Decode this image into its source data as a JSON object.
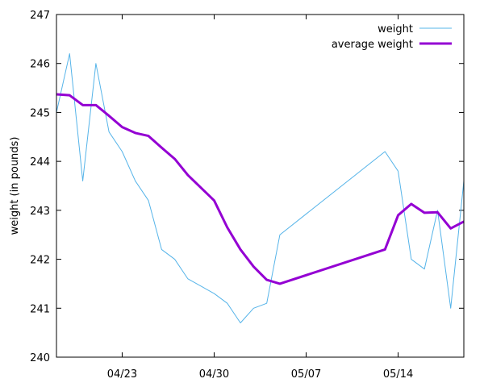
{
  "chart_data": {
    "type": "line",
    "title": "",
    "xlabel": "",
    "ylabel": "weight (in pounds)",
    "xlim": [
      "2023-04-18",
      "2023-05-19"
    ],
    "ylim": [
      240,
      247
    ],
    "x_ticks": [
      "04/23",
      "04/30",
      "05/07",
      "05/14"
    ],
    "y_ticks": [
      "240",
      "241",
      "242",
      "243",
      "244",
      "245",
      "246",
      "247"
    ],
    "grid": false,
    "legend_position": "top-right",
    "series": [
      {
        "name": "weight",
        "color": "#56b4e9",
        "line_width": "thin",
        "points": [
          [
            "2023-04-18",
            245.0
          ],
          [
            "2023-04-19",
            246.2
          ],
          [
            "2023-04-20",
            243.6
          ],
          [
            "2023-04-21",
            246.0
          ],
          [
            "2023-04-22",
            244.6
          ],
          [
            "2023-04-23",
            244.2
          ],
          [
            "2023-04-24",
            243.6
          ],
          [
            "2023-04-25",
            243.2
          ],
          [
            "2023-04-26",
            242.2
          ],
          [
            "2023-04-27",
            242.0
          ],
          [
            "2023-04-28",
            241.6
          ],
          [
            "2023-04-30",
            241.3
          ],
          [
            "2023-05-01",
            241.1
          ],
          [
            "2023-05-02",
            240.7
          ],
          [
            "2023-05-03",
            241.0
          ],
          [
            "2023-05-04",
            241.1
          ],
          [
            "2023-05-05",
            242.5
          ],
          [
            "2023-05-13",
            244.2
          ],
          [
            "2023-05-14",
            243.8
          ],
          [
            "2023-05-15",
            242.0
          ],
          [
            "2023-05-16",
            241.8
          ],
          [
            "2023-05-17",
            243.0
          ],
          [
            "2023-05-18",
            241.0
          ],
          [
            "2023-05-19",
            243.6
          ]
        ]
      },
      {
        "name": "average weight",
        "color": "#9400d3",
        "line_width": "thick",
        "points": [
          [
            "2023-04-18",
            245.37
          ],
          [
            "2023-04-19",
            245.35
          ],
          [
            "2023-04-20",
            245.15
          ],
          [
            "2023-04-21",
            245.15
          ],
          [
            "2023-04-22",
            244.93
          ],
          [
            "2023-04-23",
            244.7
          ],
          [
            "2023-04-24",
            244.58
          ],
          [
            "2023-04-25",
            244.52
          ],
          [
            "2023-04-26",
            244.28
          ],
          [
            "2023-04-27",
            244.05
          ],
          [
            "2023-04-28",
            243.72
          ],
          [
            "2023-04-30",
            243.2
          ],
          [
            "2023-05-01",
            242.65
          ],
          [
            "2023-05-02",
            242.2
          ],
          [
            "2023-05-03",
            241.85
          ],
          [
            "2023-05-04",
            241.58
          ],
          [
            "2023-05-05",
            241.5
          ],
          [
            "2023-05-13",
            242.2
          ],
          [
            "2023-05-14",
            242.9
          ],
          [
            "2023-05-15",
            243.13
          ],
          [
            "2023-05-16",
            242.95
          ],
          [
            "2023-05-17",
            242.96
          ],
          [
            "2023-05-18",
            242.63
          ],
          [
            "2023-05-19",
            242.77
          ]
        ]
      }
    ]
  }
}
